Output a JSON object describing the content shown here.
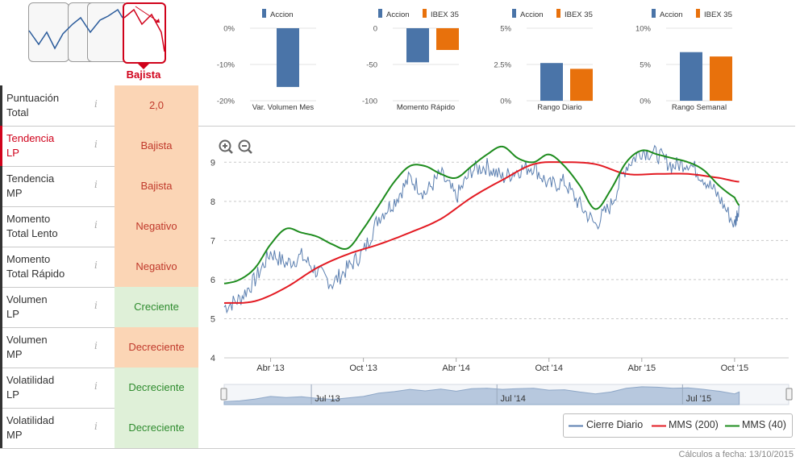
{
  "header": {
    "trend_badge": "Bajista",
    "footer": "Cálculos a fecha: 13/10/2015"
  },
  "sidebar": {
    "rows": [
      {
        "label_l1": "Puntuación",
        "label_l2": "Total",
        "value": "2,0",
        "status": "bad",
        "alert": false
      },
      {
        "label_l1": "Tendencia",
        "label_l2": "LP",
        "value": "Bajista",
        "status": "bad",
        "alert": true
      },
      {
        "label_l1": "Tendencia",
        "label_l2": "MP",
        "value": "Bajista",
        "status": "bad",
        "alert": false
      },
      {
        "label_l1": "Momento",
        "label_l2": "Total Lento",
        "value": "Negativo",
        "status": "bad",
        "alert": false
      },
      {
        "label_l1": "Momento",
        "label_l2": "Total Rápido",
        "value": "Negativo",
        "status": "bad",
        "alert": false
      },
      {
        "label_l1": "Volumen",
        "label_l2": "LP",
        "value": "Creciente",
        "status": "good",
        "alert": false
      },
      {
        "label_l1": "Volumen",
        "label_l2": "MP",
        "value": "Decreciente",
        "status": "bad",
        "alert": false
      },
      {
        "label_l1": "Volatilidad",
        "label_l2": "LP",
        "value": "Decreciente",
        "status": "good",
        "alert": false
      },
      {
        "label_l1": "Volatilidad",
        "label_l2": "MP",
        "value": "Decreciente",
        "status": "good",
        "alert": false
      }
    ],
    "info_glyph": "i"
  },
  "colors": {
    "accion": "#4a74a8",
    "ibex": "#e8710c",
    "close": "#5b7fb0",
    "mms200": "#e31b23",
    "mms40": "#1e8c1e",
    "navigator": "#b7c8de",
    "alert": "#d0021b"
  },
  "chart_data": [
    {
      "type": "bar",
      "title": "Var. Volumen Mes",
      "series": [
        {
          "name": "Accion",
          "values": [
            -16.2
          ]
        }
      ],
      "ylim": [
        -20,
        0
      ],
      "ticks": [
        "0%",
        "-10%",
        "-20%"
      ],
      "tick_values": [
        0,
        -10,
        -20
      ]
    },
    {
      "type": "bar",
      "title": "Momento Rápido",
      "series": [
        {
          "name": "Accion",
          "values": [
            -47
          ]
        },
        {
          "name": "IBEX 35",
          "values": [
            -30
          ]
        }
      ],
      "ylim": [
        -100,
        0
      ],
      "ticks": [
        "0",
        "-50",
        "-100"
      ],
      "tick_values": [
        0,
        -50,
        -100
      ]
    },
    {
      "type": "bar",
      "title": "Rango Diario",
      "series": [
        {
          "name": "Accion",
          "values": [
            2.6
          ]
        },
        {
          "name": "IBEX 35",
          "values": [
            2.2
          ]
        }
      ],
      "ylim": [
        0,
        5
      ],
      "ticks": [
        "5%",
        "2.5%",
        "0%"
      ],
      "tick_values": [
        5,
        2.5,
        0
      ]
    },
    {
      "type": "bar",
      "title": "Rango Semanal",
      "series": [
        {
          "name": "Accion",
          "values": [
            6.7
          ]
        },
        {
          "name": "IBEX 35",
          "values": [
            6.1
          ]
        }
      ],
      "ylim": [
        0,
        10
      ],
      "ticks": [
        "10%",
        "5%",
        "0%"
      ],
      "tick_values": [
        10,
        5,
        0
      ]
    },
    {
      "type": "line",
      "title": "",
      "xlabel": "",
      "ylabel": "",
      "ylim": [
        4,
        9.5
      ],
      "xlim": [
        0,
        36.5
      ],
      "y_ticks": [
        "4",
        "5",
        "6",
        "7",
        "8",
        "9"
      ],
      "y_tick_values": [
        4,
        5,
        6,
        7,
        8,
        9
      ],
      "x_ticks": [
        "Abr '13",
        "Oct '13",
        "Abr '14",
        "Oct '14",
        "Abr '15",
        "Oct '15"
      ],
      "x_tick_values": [
        3,
        9,
        15,
        21,
        27,
        33
      ],
      "navigator_labels": [
        "Jul '13",
        "Jul '14",
        "Jul '15"
      ],
      "navigator_values": [
        6,
        18,
        30
      ],
      "series": [
        {
          "name": "Cierre Diario",
          "x": [
            0,
            1,
            2,
            3,
            4,
            5,
            6,
            7,
            8,
            9,
            10,
            11,
            12,
            13,
            14,
            15,
            16,
            17,
            18,
            19,
            20,
            21,
            22,
            23,
            24,
            25,
            26,
            27,
            28,
            29,
            30,
            31,
            32,
            33,
            33.3
          ],
          "values": [
            5.3,
            5.5,
            6.0,
            6.7,
            6.4,
            6.6,
            6.2,
            5.9,
            6.3,
            6.7,
            7.6,
            8.0,
            8.6,
            8.2,
            8.7,
            8.1,
            8.8,
            8.9,
            8.6,
            8.8,
            8.9,
            8.4,
            8.5,
            7.9,
            7.4,
            7.9,
            8.9,
            9.3,
            9.2,
            8.9,
            9.0,
            8.6,
            8.1,
            7.4,
            7.9
          ]
        },
        {
          "name": "MMS (200)",
          "x": [
            0,
            2,
            4,
            6,
            8,
            10,
            12,
            14,
            16,
            18,
            20,
            22,
            24,
            26,
            28,
            30,
            32,
            33.3
          ],
          "values": [
            5.4,
            5.45,
            5.8,
            6.3,
            6.65,
            6.9,
            7.2,
            7.55,
            8.1,
            8.55,
            8.95,
            9.0,
            8.95,
            8.7,
            8.7,
            8.7,
            8.6,
            8.5
          ]
        },
        {
          "name": "MMS (40)",
          "x": [
            0,
            1,
            2,
            3,
            4,
            5,
            6,
            7,
            8,
            9,
            10,
            11,
            12,
            13,
            14,
            15,
            16,
            17,
            18,
            19,
            20,
            21,
            22,
            23,
            24,
            25,
            26,
            27,
            28,
            29,
            30,
            31,
            32,
            33,
            33.3
          ],
          "values": [
            5.9,
            6.0,
            6.3,
            6.9,
            7.3,
            7.2,
            7.1,
            6.9,
            6.8,
            7.3,
            7.9,
            8.5,
            8.9,
            8.9,
            8.7,
            8.6,
            8.9,
            9.2,
            9.4,
            9.1,
            9.0,
            9.2,
            8.9,
            8.4,
            7.8,
            8.3,
            9.0,
            9.3,
            9.2,
            9.1,
            9.0,
            8.8,
            8.4,
            8.1,
            7.9
          ]
        }
      ]
    }
  ],
  "mini_legends": {
    "accion": "Accion",
    "ibex": "IBEX 35"
  },
  "main_legend": {
    "close": "Cierre Diario",
    "mms200": "MMS (200)",
    "mms40": "MMS (40)"
  }
}
